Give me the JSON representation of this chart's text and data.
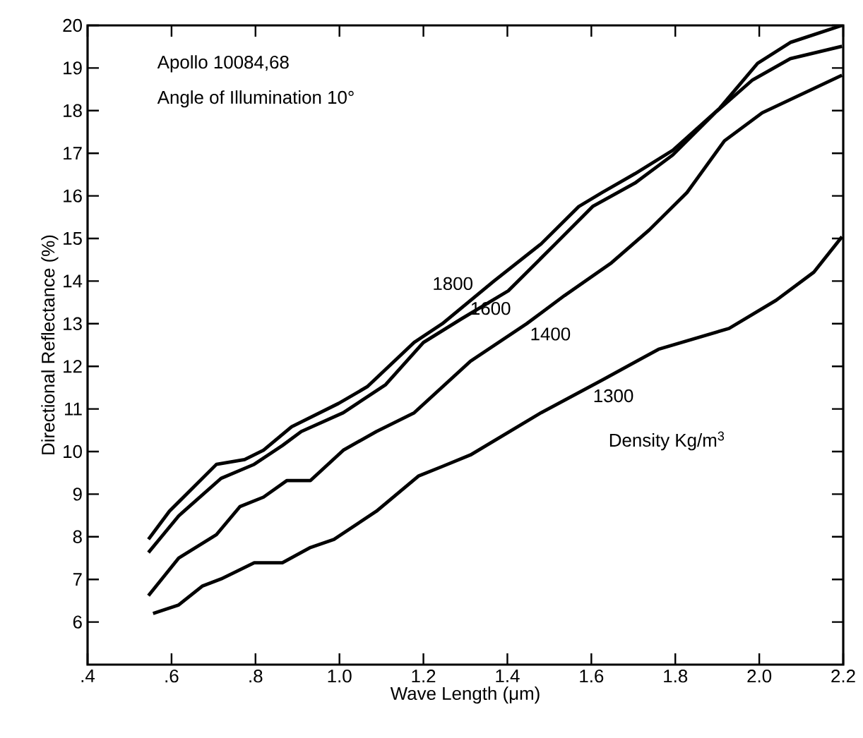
{
  "chart_data": {
    "type": "line",
    "xlabel": "Wave Length (μm)",
    "ylabel": "Directional Reflectance (%)",
    "annotations": [
      "Apollo 10084,68",
      "Angle of Illumination 10°",
      "Density Kg/m$^{3}$"
    ],
    "xlim": [
      0.4,
      2.2
    ],
    "ylim": [
      5,
      20
    ],
    "xticks": [
      {
        "value": 0.4,
        "label": ".4"
      },
      {
        "value": 0.6,
        "label": ".6"
      },
      {
        "value": 0.8,
        "label": ".8"
      },
      {
        "value": 1.0,
        "label": "1.0"
      },
      {
        "value": 1.2,
        "label": "1.2"
      },
      {
        "value": 1.4,
        "label": "1.4"
      },
      {
        "value": 1.6,
        "label": "1.6"
      },
      {
        "value": 1.8,
        "label": "1.8"
      },
      {
        "value": 2.0,
        "label": "2.0"
      },
      {
        "value": 2.2,
        "label": "2.2"
      }
    ],
    "yticks": [
      6,
      7,
      8,
      9,
      10,
      11,
      12,
      13,
      14,
      15,
      16,
      17,
      18,
      19,
      20
    ],
    "grid": false,
    "legend": false,
    "marker": "none",
    "line_style": "solid",
    "series": [
      {
        "name": "1800",
        "color": "#000000",
        "x": [
          0.545,
          0.595,
          0.707,
          0.774,
          0.819,
          0.886,
          0.998,
          1.066,
          1.178,
          1.245,
          1.368,
          1.48,
          1.57,
          1.626,
          1.704,
          1.794,
          1.906,
          1.996,
          2.074,
          2.197
        ],
        "values": [
          7.94,
          8.6,
          9.7,
          9.81,
          10.03,
          10.58,
          11.13,
          11.52,
          12.56,
          13.0,
          14.0,
          14.87,
          15.75,
          16.08,
          16.52,
          17.07,
          18.06,
          19.11,
          19.6,
          20.0
        ]
      },
      {
        "name": "1600",
        "color": "#000000",
        "x": [
          0.545,
          0.617,
          0.718,
          0.797,
          0.864,
          0.909,
          1.009,
          1.11,
          1.2,
          1.29,
          1.402,
          1.514,
          1.603,
          1.704,
          1.794,
          1.895,
          1.984,
          2.074,
          2.197
        ],
        "values": [
          7.63,
          8.49,
          9.37,
          9.7,
          10.14,
          10.47,
          10.91,
          11.57,
          12.56,
          13.11,
          13.77,
          14.87,
          15.75,
          16.3,
          16.96,
          17.95,
          18.72,
          19.22,
          19.51
        ]
      },
      {
        "name": "1400",
        "color": "#000000",
        "x": [
          0.545,
          0.617,
          0.707,
          0.763,
          0.819,
          0.875,
          0.931,
          1.009,
          1.088,
          1.178,
          1.312,
          1.446,
          1.536,
          1.648,
          1.738,
          1.828,
          1.917,
          2.007,
          2.197
        ],
        "values": [
          6.62,
          7.5,
          8.05,
          8.71,
          8.93,
          9.32,
          9.32,
          10.03,
          10.47,
          10.91,
          12.12,
          13.0,
          13.66,
          14.43,
          15.2,
          16.08,
          17.29,
          17.95,
          18.83
        ]
      },
      {
        "name": "1300",
        "color": "#000000",
        "x": [
          0.556,
          0.617,
          0.673,
          0.718,
          0.797,
          0.864,
          0.931,
          0.987,
          1.088,
          1.189,
          1.245,
          1.312,
          1.48,
          1.626,
          1.76,
          1.928,
          2.04,
          2.13,
          2.197
        ],
        "values": [
          6.2,
          6.4,
          6.84,
          7.01,
          7.39,
          7.39,
          7.75,
          7.94,
          8.6,
          9.43,
          9.65,
          9.92,
          10.91,
          11.68,
          12.4,
          12.89,
          13.55,
          14.21,
          15.04
        ]
      }
    ]
  }
}
